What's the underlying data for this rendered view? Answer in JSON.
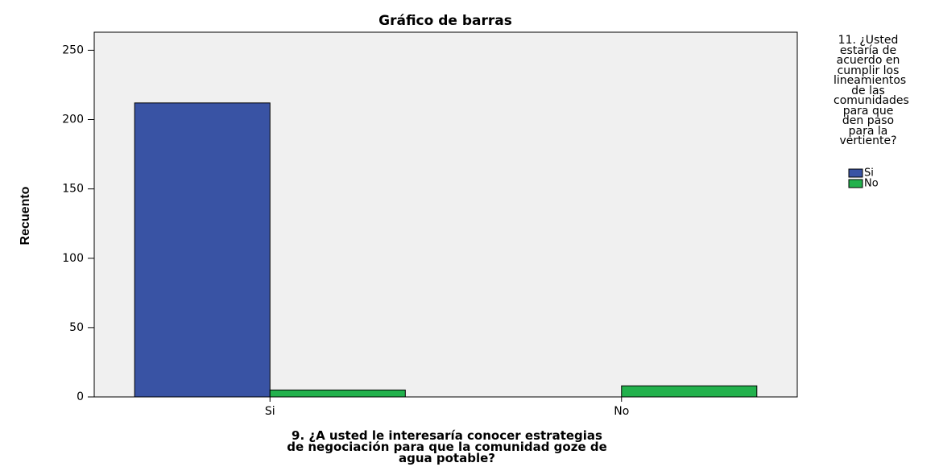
{
  "chart_data": {
    "type": "bar",
    "title": "Gráfico de barras",
    "x_label": "9. ¿A usted le interesaría conocer estrategias de negociación para que la comunidad goze de agua potable?",
    "y_label": "Recuento",
    "legend_title": "11. ¿Usted estaría de acuerdo en cumplir los lineamientos de las comunidades para que den paso para la vertiente?",
    "categories": [
      "Si",
      "No"
    ],
    "series": [
      {
        "name": "Si",
        "color": "#3953a4",
        "values": [
          212,
          0
        ]
      },
      {
        "name": "No",
        "color": "#22b14c",
        "values": [
          5,
          8
        ]
      }
    ],
    "ylim": [
      0,
      263
    ],
    "yticks": [
      0,
      50,
      100,
      150,
      200,
      250
    ],
    "legend": "right"
  }
}
